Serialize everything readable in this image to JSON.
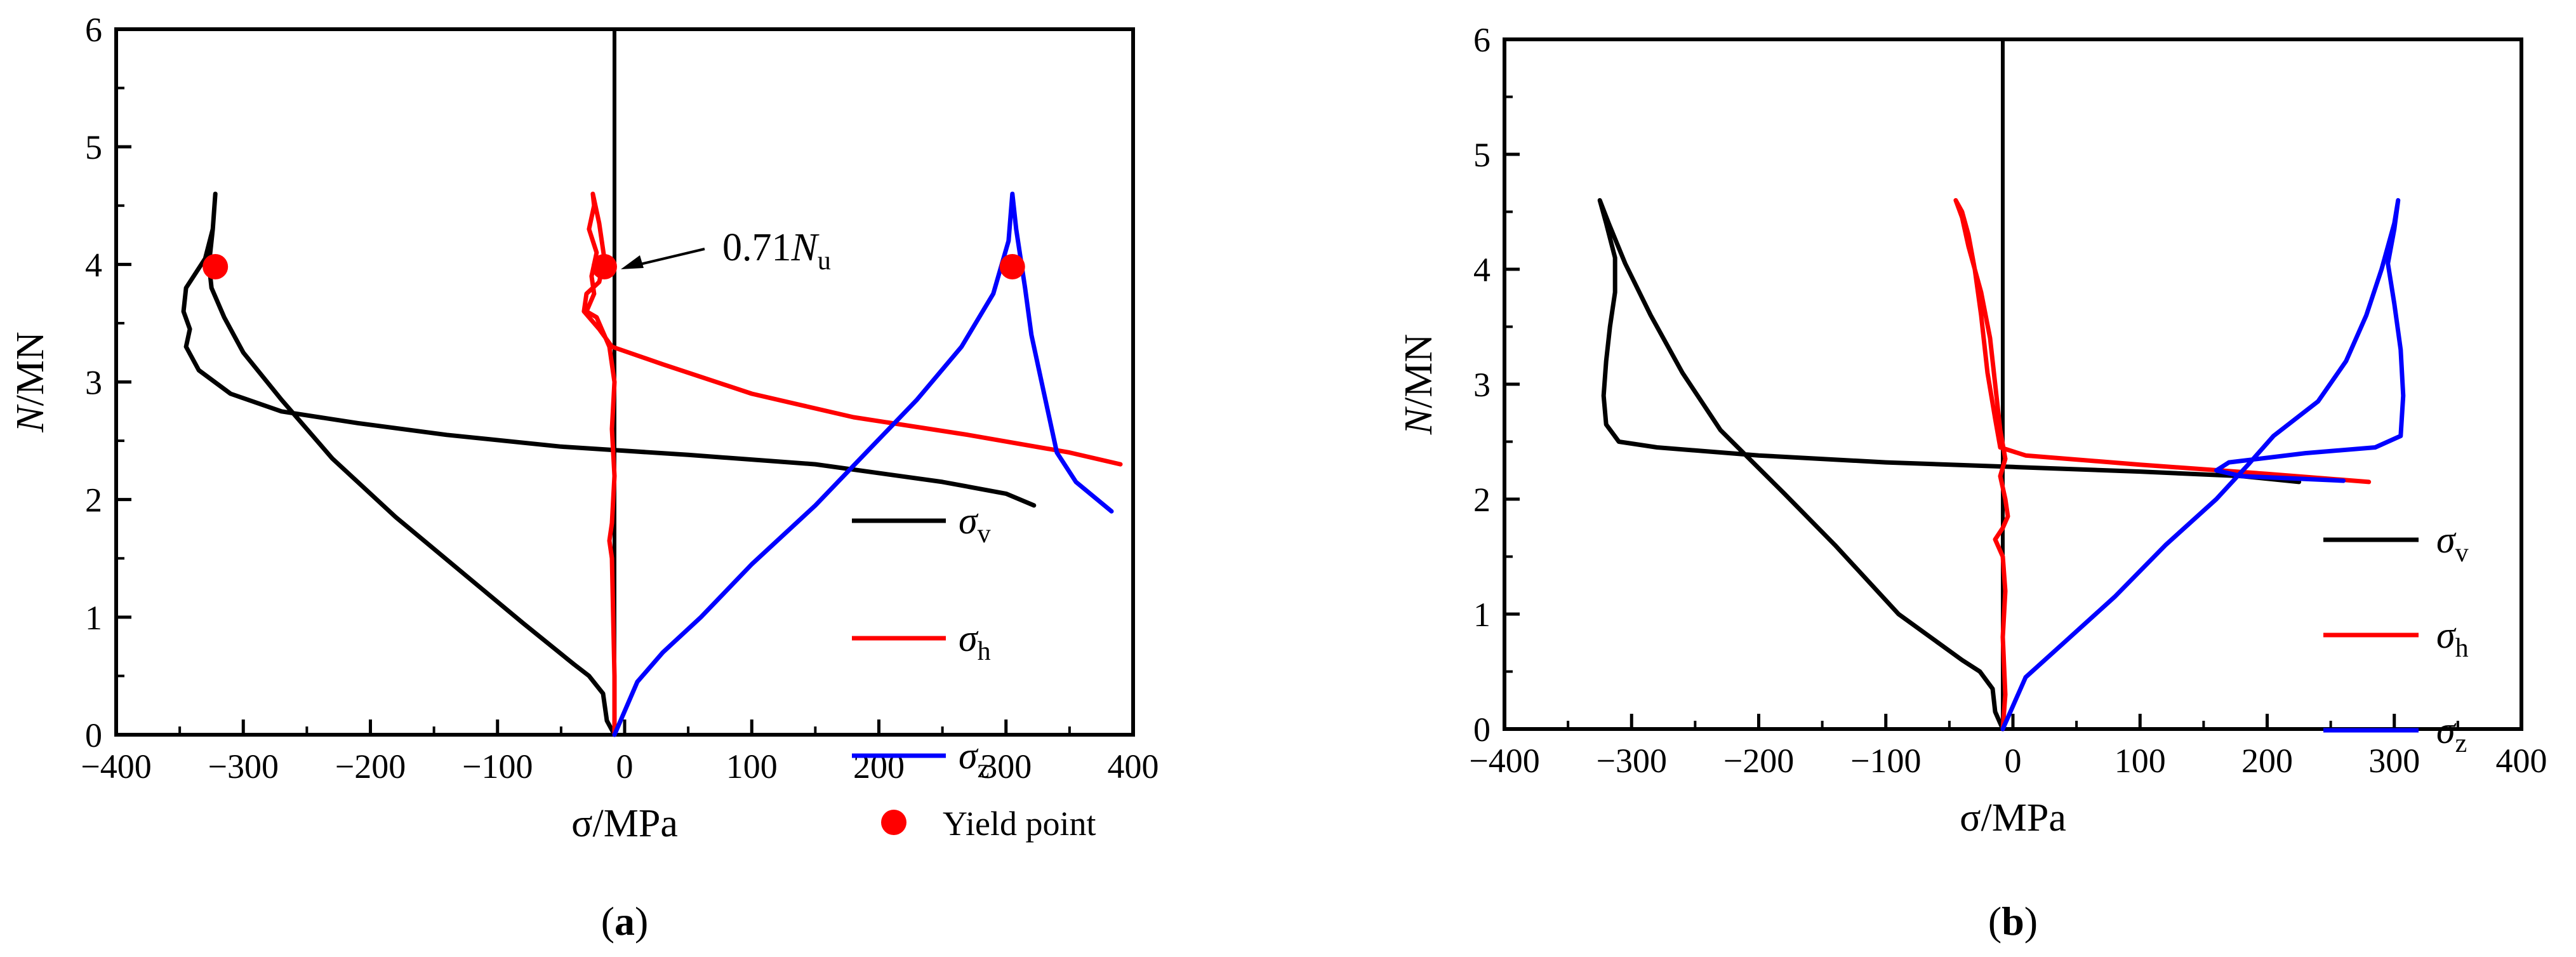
{
  "chart_data": [
    {
      "type": "line",
      "panel_label": "a",
      "xlabel": "σ/MPa",
      "ylabel_main": "N",
      "ylabel_rest": "/MN",
      "xlim": [
        -400,
        400
      ],
      "ylim": [
        0,
        6
      ],
      "xticks": [
        -400,
        -300,
        -200,
        -100,
        0,
        100,
        200,
        300,
        400
      ],
      "yticks": [
        0,
        1,
        2,
        3,
        4,
        5,
        6
      ],
      "xtick_labels": [
        "−400",
        "−300",
        "−200",
        "−100",
        "0",
        "100",
        "200",
        "300",
        "400"
      ],
      "ytick_labels": [
        "0",
        "1",
        "2",
        "3",
        "4",
        "5",
        "6"
      ],
      "vertical_line_x": -8,
      "series": [
        {
          "name": "σv",
          "sym": "σ",
          "sub": "v",
          "color": "#000000",
          "points": [
            [
              -8,
              0
            ],
            [
              -14,
              0.12
            ],
            [
              -17,
              0.35
            ],
            [
              -28,
              0.5
            ],
            [
              -40,
              0.6
            ],
            [
              -80,
              0.95
            ],
            [
              -130,
              1.4
            ],
            [
              -180,
              1.85
            ],
            [
              -230,
              2.35
            ],
            [
              -270,
              2.85
            ],
            [
              -300,
              3.25
            ],
            [
              -315,
              3.55
            ],
            [
              -325,
              3.8
            ],
            [
              -327,
              4.0
            ],
            [
              -324,
              4.3
            ],
            [
              -322,
              4.6
            ],
            [
              -324,
              4.3
            ],
            [
              -330,
              4.05
            ],
            [
              -345,
              3.8
            ],
            [
              -347,
              3.6
            ],
            [
              -342,
              3.45
            ],
            [
              -345,
              3.3
            ],
            [
              -335,
              3.1
            ],
            [
              -310,
              2.9
            ],
            [
              -270,
              2.75
            ],
            [
              -210,
              2.65
            ],
            [
              -140,
              2.55
            ],
            [
              -50,
              2.45
            ],
            [
              50,
              2.38
            ],
            [
              150,
              2.3
            ],
            [
              250,
              2.15
            ],
            [
              300,
              2.05
            ],
            [
              322,
              1.95
            ]
          ]
        },
        {
          "name": "σh",
          "sym": "σ",
          "sub": "h",
          "color": "#ff0000",
          "points": [
            [
              -8,
              0
            ],
            [
              -8,
              0.5
            ],
            [
              -9,
              1.0
            ],
            [
              -10,
              1.5
            ],
            [
              -12,
              1.65
            ],
            [
              -10,
              1.8
            ],
            [
              -8,
              2.2
            ],
            [
              -10,
              2.6
            ],
            [
              -8,
              3.0
            ],
            [
              -12,
              3.3
            ],
            [
              -22,
              3.55
            ],
            [
              -30,
              3.6
            ],
            [
              -24,
              3.75
            ],
            [
              -26,
              3.9
            ],
            [
              -22,
              4.1
            ],
            [
              -28,
              4.3
            ],
            [
              -24,
              4.5
            ],
            [
              -25,
              4.6
            ],
            [
              -20,
              4.35
            ],
            [
              -16,
              4.05
            ],
            [
              -20,
              3.85
            ],
            [
              -30,
              3.75
            ],
            [
              -32,
              3.6
            ],
            [
              -20,
              3.45
            ],
            [
              -10,
              3.3
            ],
            [
              30,
              3.15
            ],
            [
              100,
              2.9
            ],
            [
              180,
              2.7
            ],
            [
              270,
              2.55
            ],
            [
              350,
              2.4
            ],
            [
              390,
              2.3
            ]
          ]
        },
        {
          "name": "σz",
          "sym": "σ",
          "sub": "z",
          "color": "#0000ff",
          "points": [
            [
              -8,
              0
            ],
            [
              0,
              0.2
            ],
            [
              10,
              0.45
            ],
            [
              30,
              0.7
            ],
            [
              60,
              1.0
            ],
            [
              100,
              1.45
            ],
            [
              150,
              1.95
            ],
            [
              190,
              2.4
            ],
            [
              230,
              2.85
            ],
            [
              265,
              3.3
            ],
            [
              290,
              3.75
            ],
            [
              302,
              4.2
            ],
            [
              305,
              4.6
            ],
            [
              308,
              4.3
            ],
            [
              315,
              3.8
            ],
            [
              320,
              3.4
            ],
            [
              330,
              2.9
            ],
            [
              340,
              2.4
            ],
            [
              355,
              2.15
            ],
            [
              383,
              1.9
            ]
          ]
        }
      ],
      "yield_points": [
        [
          -322,
          3.98
        ],
        [
          -16,
          3.98
        ],
        [
          305,
          3.98
        ]
      ],
      "yield_color": "#ff0000",
      "legend_items": [
        "σv",
        "σh",
        "σz",
        "Yield point"
      ],
      "legend_yield_label": "Yield point",
      "annotation": {
        "text_num": "0.71",
        "text_sym": "N",
        "text_sub": "u",
        "point": [
          -10,
          3.98
        ]
      }
    },
    {
      "type": "line",
      "panel_label": "b",
      "xlabel": "σ/MPa",
      "ylabel_main": "N",
      "ylabel_rest": "/MN",
      "xlim": [
        -400,
        400
      ],
      "ylim": [
        0,
        6
      ],
      "xticks": [
        -400,
        -300,
        -200,
        -100,
        0,
        100,
        200,
        300,
        400
      ],
      "yticks": [
        0,
        1,
        2,
        3,
        4,
        5,
        6
      ],
      "xtick_labels": [
        "−400",
        "−300",
        "−200",
        "−100",
        "0",
        "100",
        "200",
        "300",
        "400"
      ],
      "ytick_labels": [
        "0",
        "1",
        "2",
        "3",
        "4",
        "5",
        "6"
      ],
      "vertical_line_x": -8,
      "series": [
        {
          "name": "σv",
          "sym": "σ",
          "sub": "v",
          "color": "#000000",
          "points": [
            [
              -8,
              0
            ],
            [
              -14,
              0.15
            ],
            [
              -16,
              0.35
            ],
            [
              -26,
              0.5
            ],
            [
              -40,
              0.6
            ],
            [
              -90,
              1.0
            ],
            [
              -140,
              1.6
            ],
            [
              -180,
              2.05
            ],
            [
              -230,
              2.6
            ],
            [
              -260,
              3.1
            ],
            [
              -285,
              3.6
            ],
            [
              -305,
              4.05
            ],
            [
              -318,
              4.4
            ],
            [
              -325,
              4.6
            ],
            [
              -320,
              4.4
            ],
            [
              -313,
              4.1
            ],
            [
              -313,
              3.8
            ],
            [
              -317,
              3.5
            ],
            [
              -320,
              3.2
            ],
            [
              -322,
              2.9
            ],
            [
              -320,
              2.65
            ],
            [
              -310,
              2.5
            ],
            [
              -280,
              2.45
            ],
            [
              -200,
              2.38
            ],
            [
              -100,
              2.32
            ],
            [
              0,
              2.28
            ],
            [
              100,
              2.24
            ],
            [
              180,
              2.2
            ],
            [
              225,
              2.15
            ]
          ]
        },
        {
          "name": "σh",
          "sym": "σ",
          "sub": "h",
          "color": "#ff0000",
          "points": [
            [
              -8,
              0
            ],
            [
              -6,
              0.3
            ],
            [
              -8,
              0.8
            ],
            [
              -6,
              1.2
            ],
            [
              -8,
              1.5
            ],
            [
              -14,
              1.65
            ],
            [
              -8,
              1.75
            ],
            [
              -4,
              1.85
            ],
            [
              -6,
              2.0
            ],
            [
              -10,
              2.2
            ],
            [
              -6,
              2.35
            ],
            [
              -10,
              2.6
            ],
            [
              -14,
              3.0
            ],
            [
              -18,
              3.4
            ],
            [
              -25,
              3.8
            ],
            [
              -35,
              4.2
            ],
            [
              -40,
              4.45
            ],
            [
              -45,
              4.6
            ],
            [
              -40,
              4.5
            ],
            [
              -35,
              4.3
            ],
            [
              -30,
              4.0
            ],
            [
              -25,
              3.6
            ],
            [
              -20,
              3.1
            ],
            [
              -14,
              2.7
            ],
            [
              -10,
              2.45
            ],
            [
              10,
              2.38
            ],
            [
              100,
              2.3
            ],
            [
              200,
              2.22
            ],
            [
              280,
              2.15
            ]
          ]
        },
        {
          "name": "σz",
          "sym": "σ",
          "sub": "z",
          "color": "#0000ff",
          "points": [
            [
              -8,
              0
            ],
            [
              0,
              0.2
            ],
            [
              10,
              0.45
            ],
            [
              40,
              0.75
            ],
            [
              80,
              1.15
            ],
            [
              120,
              1.6
            ],
            [
              160,
              2.0
            ],
            [
              185,
              2.3
            ],
            [
              205,
              2.55
            ],
            [
              240,
              2.85
            ],
            [
              262,
              3.2
            ],
            [
              278,
              3.6
            ],
            [
              290,
              4.0
            ],
            [
              300,
              4.4
            ],
            [
              303,
              4.6
            ],
            [
              300,
              4.35
            ],
            [
              295,
              4.05
            ],
            [
              300,
              3.7
            ],
            [
              305,
              3.3
            ],
            [
              307,
              2.9
            ],
            [
              305,
              2.55
            ],
            [
              285,
              2.45
            ],
            [
              230,
              2.4
            ],
            [
              170,
              2.32
            ],
            [
              160,
              2.25
            ],
            [
              180,
              2.2
            ],
            [
              220,
              2.18
            ],
            [
              260,
              2.16
            ]
          ]
        }
      ],
      "legend_items": [
        "σv",
        "σh",
        "σz"
      ]
    }
  ]
}
